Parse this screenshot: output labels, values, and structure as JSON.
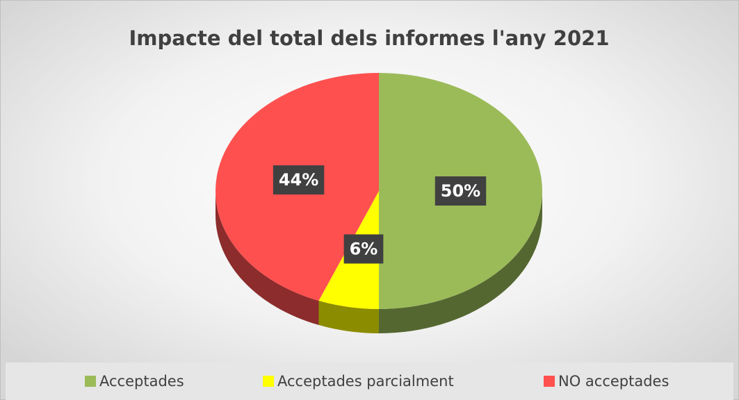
{
  "chart_data": {
    "type": "pie",
    "title": "Impacte del total dels informes l'any 2021",
    "categories": [
      "Acceptades",
      "Acceptades parcialment",
      "NO acceptades"
    ],
    "values": [
      50,
      6,
      44
    ],
    "value_labels": [
      "50%",
      "6%",
      "44%"
    ],
    "colors": [
      "#9bbb59",
      "#ffff00",
      "#ff5050"
    ],
    "legend": "bottom"
  }
}
